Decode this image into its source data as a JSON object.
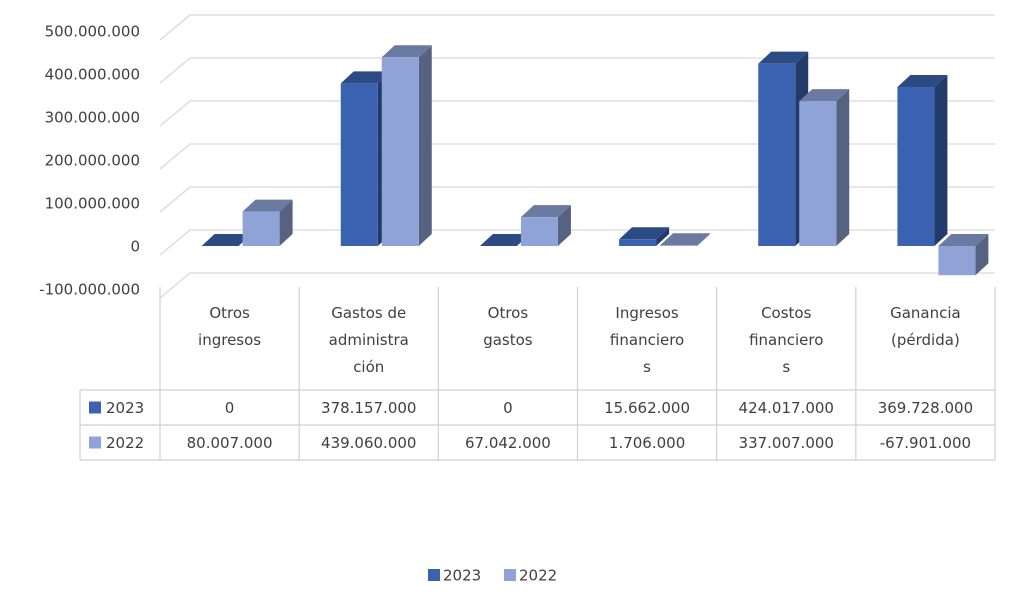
{
  "chart_data": {
    "type": "bar3d",
    "categories": [
      "Otros ingresos",
      "Gastos de administración",
      "Otros gastos",
      "Ingresos financieros",
      "Costos financieros",
      "Ganancia (pérdida)"
    ],
    "series": [
      {
        "name": "2023",
        "color": "#3a62b0",
        "values": [
          0,
          378157000,
          0,
          15662000,
          424017000,
          369728000
        ],
        "value_labels": [
          "0",
          "378.157.000",
          "0",
          "15.662.000",
          "424.017.000",
          "369.728.000"
        ]
      },
      {
        "name": "2022",
        "color": "#8fa3d6",
        "values": [
          80007000,
          439060000,
          67042000,
          1706000,
          337007000,
          -67901000
        ],
        "value_labels": [
          "80.007.000",
          "439.060.000",
          "67.042.000",
          "1.706.000",
          "337.007.000",
          "-67.901.000"
        ]
      }
    ],
    "ylim": [
      -100000000,
      500000000
    ],
    "yticks": [
      {
        "value": -100000000,
        "label": "-100.000.000"
      },
      0,
      {
        "value": 100000000,
        "label": "100.000.000"
      },
      {
        "value": 200000000,
        "label": "200.000.000"
      },
      {
        "value": 300000000,
        "label": "300.000.000"
      },
      {
        "value": 400000000,
        "label": "400.000.000"
      },
      {
        "value": 500000000,
        "label": "500.000.000"
      }
    ],
    "grid": true,
    "legend": "bottom",
    "data_table": true
  }
}
